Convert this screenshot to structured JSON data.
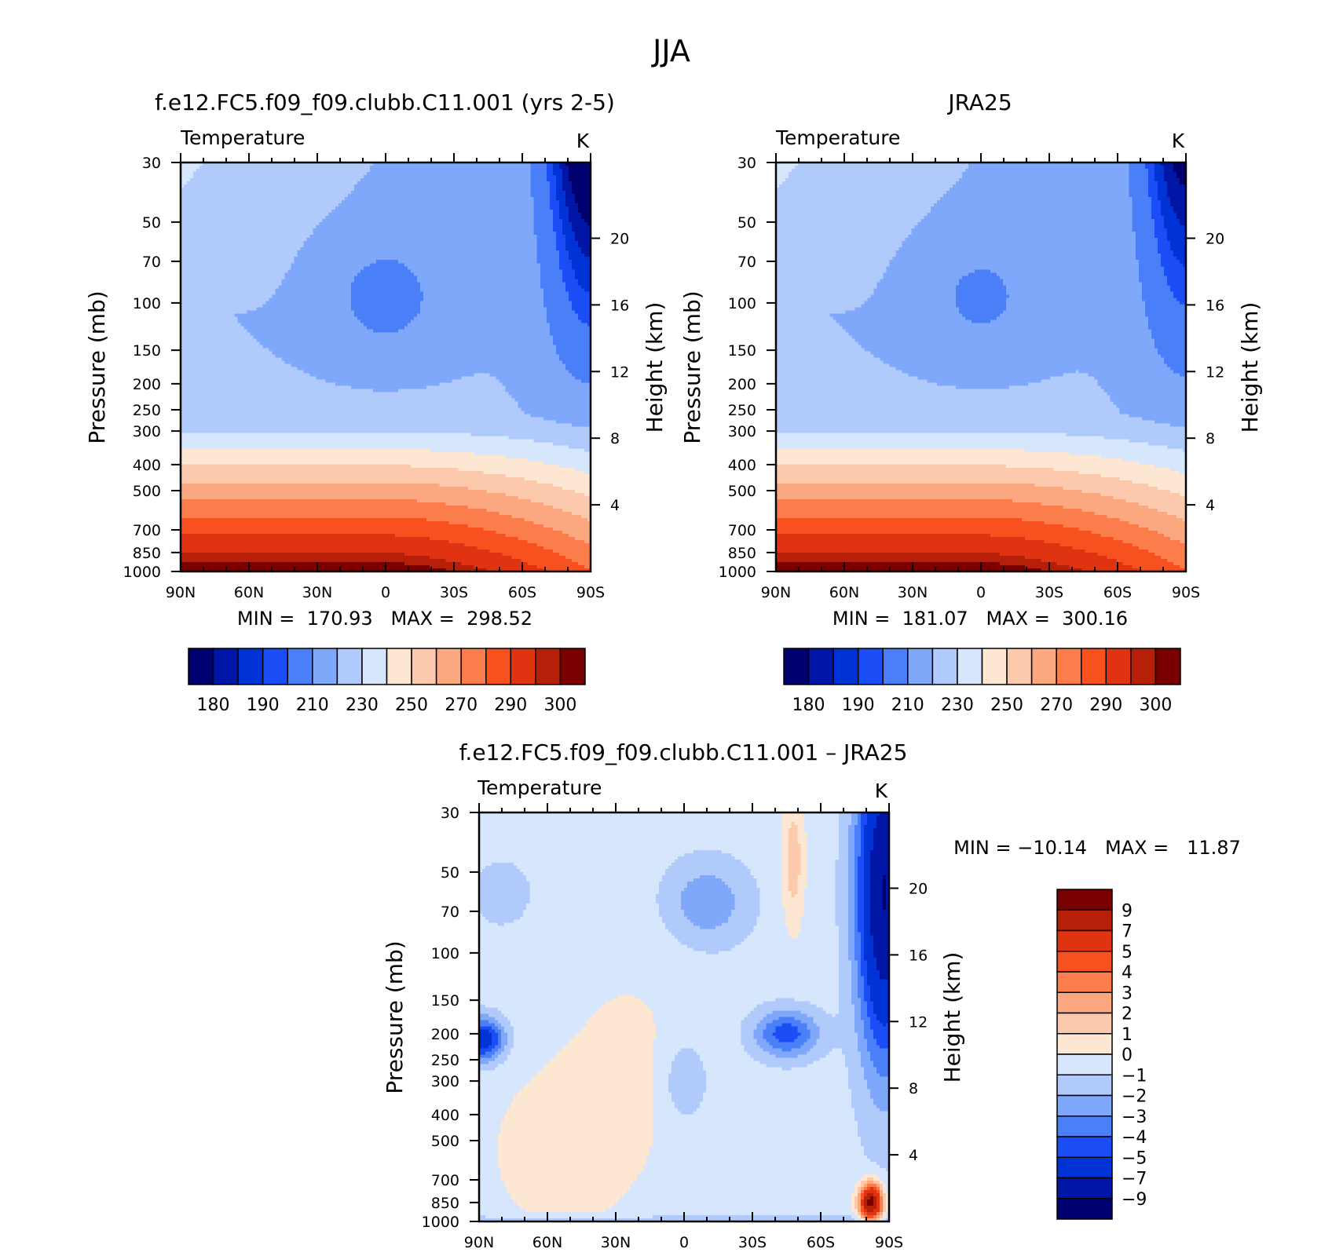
{
  "page_title": "JJA",
  "chart_data": [
    {
      "type": "contour",
      "title": "f.e12.FC5.f09_f09.clubb.C11.001 (yrs 2-5)",
      "variable": "Temperature",
      "units": "K",
      "ylabel": "Pressure (mb)",
      "y2label": "Height (km)",
      "x_ticks": [
        "90N",
        "60N",
        "30N",
        "0",
        "30S",
        "60S",
        "90S"
      ],
      "pressure_ticks": [
        30,
        50,
        70,
        100,
        150,
        200,
        250,
        300,
        400,
        500,
        700,
        850,
        1000
      ],
      "height_ticks": [
        4,
        8,
        12,
        16,
        20
      ],
      "min": "170.93",
      "max": "298.52",
      "stats_text": "MIN =  170.93   MAX =  298.52",
      "colorbar": {
        "colors": [
          "#000070",
          "#0016a6",
          "#0033d6",
          "#1a4df5",
          "#4b7ff7",
          "#7fa8fa",
          "#b0cbfb",
          "#d6e6fd",
          "#fde7d3",
          "#fcc9ad",
          "#fba77f",
          "#fa7d4b",
          "#f7511f",
          "#e03311",
          "#b62008",
          "#7a0000"
        ],
        "tick_labels": [
          "180",
          "190",
          "210",
          "230",
          "250",
          "270",
          "290",
          "300"
        ]
      },
      "field": {
        "base": 173,
        "tropo_drop": 62,
        "cold_core": 14,
        "pole_cold": 44,
        "pole_lat": -90,
        "pole_width": 22,
        "hot_spot": 0
      }
    },
    {
      "type": "contour",
      "title": "JRA25",
      "variable": "Temperature",
      "units": "K",
      "ylabel": "Pressure (mb)",
      "y2label": "Height (km)",
      "x_ticks": [
        "90N",
        "60N",
        "30N",
        "0",
        "30S",
        "60S",
        "90S"
      ],
      "pressure_ticks": [
        30,
        50,
        70,
        100,
        150,
        200,
        250,
        300,
        400,
        500,
        700,
        850,
        1000
      ],
      "height_ticks": [
        4,
        8,
        12,
        16,
        20
      ],
      "min": "181.07",
      "max": "300.16",
      "stats_text": "MIN =  181.07   MAX =  300.16",
      "colorbar": {
        "colors": [
          "#000070",
          "#0016a6",
          "#0033d6",
          "#1a4df5",
          "#4b7ff7",
          "#7fa8fa",
          "#b0cbfb",
          "#d6e6fd",
          "#fde7d3",
          "#fcc9ad",
          "#fba77f",
          "#fa7d4b",
          "#f7511f",
          "#e03311",
          "#b62008",
          "#7a0000"
        ],
        "tick_labels": [
          "180",
          "190",
          "210",
          "230",
          "250",
          "270",
          "290",
          "300"
        ]
      },
      "field": {
        "base": 175,
        "tropo_drop": 62,
        "cold_core": 12,
        "pole_cold": 38,
        "pole_lat": -90,
        "pole_width": 22,
        "hot_spot": 0
      }
    },
    {
      "type": "contour",
      "title": "f.e12.FC5.f09_f09.clubb.C11.001 – JRA25",
      "variable": "Temperature",
      "units": "K",
      "ylabel": "Pressure (mb)",
      "y2label": "Height (km)",
      "x_ticks": [
        "90N",
        "60N",
        "30N",
        "0",
        "30S",
        "60S",
        "90S"
      ],
      "pressure_ticks": [
        30,
        50,
        70,
        100,
        150,
        200,
        250,
        300,
        400,
        500,
        700,
        850,
        1000
      ],
      "height_ticks": [
        4,
        8,
        12,
        16,
        20
      ],
      "min": "−10.14",
      "max": "11.87",
      "stats_text": "MIN = −10.14   MAX =   11.87",
      "colorbar": {
        "colors": [
          "#7a0000",
          "#b62008",
          "#e03311",
          "#f7511f",
          "#fa7d4b",
          "#fba77f",
          "#fcc9ad",
          "#fde7d3",
          "#d6e6fd",
          "#b0cbfb",
          "#7fa8fa",
          "#4b7ff7",
          "#1a4df5",
          "#0033d6",
          "#0016a6",
          "#000070"
        ],
        "tick_labels": [
          "9",
          "7",
          "5",
          "4",
          "3",
          "2",
          "1",
          "0",
          "−1",
          "−2",
          "−3",
          "−4",
          "−5",
          "−7",
          "−9"
        ]
      }
    }
  ]
}
